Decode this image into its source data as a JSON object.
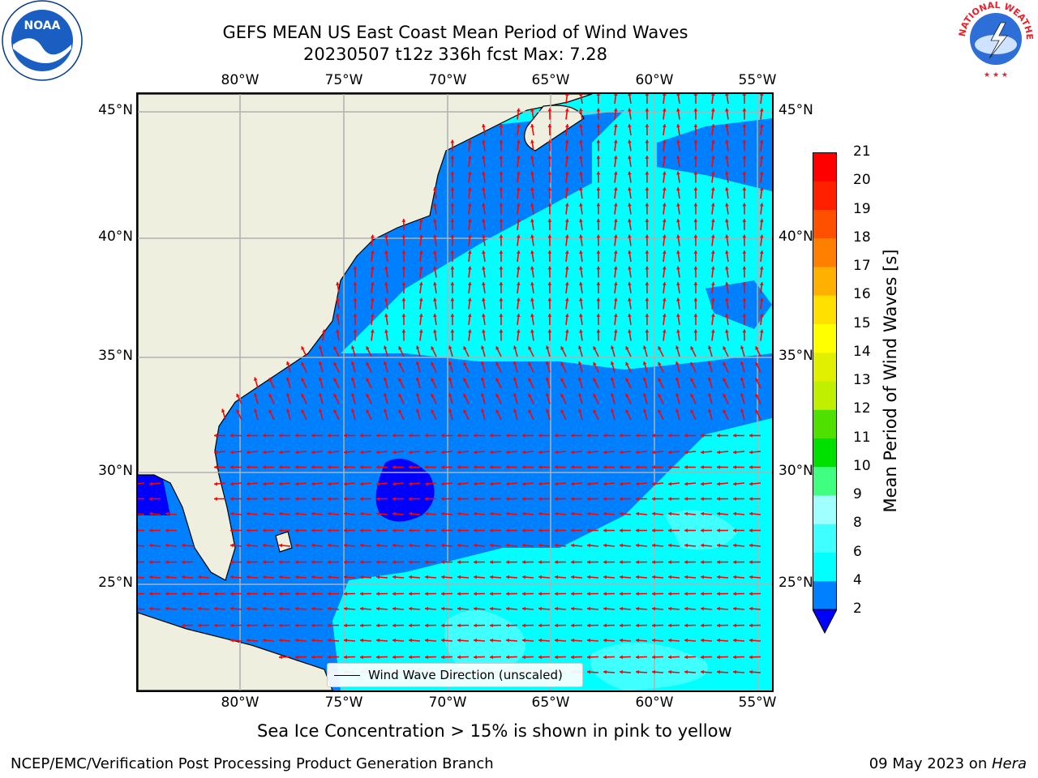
{
  "title": {
    "line1": "GEFS MEAN US East Coast Mean Period of Wind Waves",
    "line2": "20230507 t12z 336h fcst   Max: 7.28"
  },
  "logos": {
    "left": {
      "name": "noaa-logo",
      "text": "NOAA"
    },
    "right": {
      "name": "nws-logo",
      "text": "NATIONAL WEATHER SERVICE"
    }
  },
  "map": {
    "lon_labels": [
      "80°W",
      "75°W",
      "70°W",
      "65°W",
      "60°W",
      "55°W"
    ],
    "lat_labels": [
      "45°N",
      "40°N",
      "35°N",
      "30°N",
      "25°N"
    ],
    "land_color": "#efefdf",
    "arrow_color": "#ff0000",
    "gridline_color": "#b0b0b0"
  },
  "legend": {
    "label": "Wind Wave Direction (unscaled)"
  },
  "colorbar": {
    "label": "Mean Period of Wind Waves [s]",
    "ticks": [
      "2",
      "4",
      "6",
      "8",
      "9",
      "10",
      "11",
      "12",
      "13",
      "14",
      "15",
      "16",
      "17",
      "18",
      "19",
      "20",
      "21"
    ],
    "colors": [
      "#0000ff",
      "#0080ff",
      "#00ffff",
      "#40ffff",
      "#a0ffff",
      "#40ff80",
      "#00e000",
      "#50e000",
      "#c0f000",
      "#e0f000",
      "#ffff00",
      "#ffe000",
      "#ffb000",
      "#ff8000",
      "#ff5000",
      "#ff2000",
      "#ff0000"
    ]
  },
  "subtitle": "Sea Ice Concentration > 15% is shown in pink to yellow",
  "footer": {
    "left": "NCEP/EMC/Verification Post Processing Product Generation Branch",
    "date": "09 May 2023 on ",
    "machine": "Hera"
  }
}
